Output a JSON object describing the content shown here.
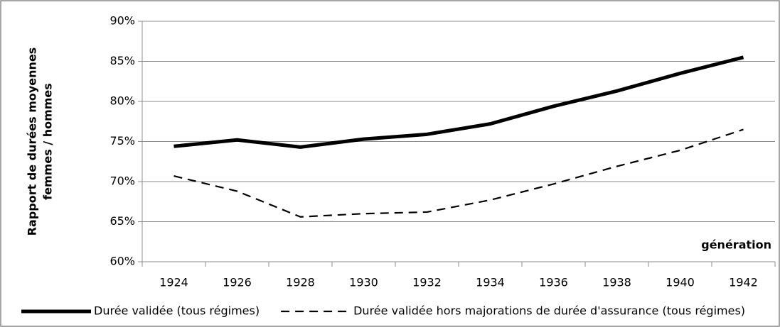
{
  "chart_data": {
    "type": "line",
    "y_label": [
      "Rapport de durées moyennes",
      "femmes / hommes"
    ],
    "x_label": "génération",
    "categories": [
      "1924",
      "1926",
      "1928",
      "1930",
      "1932",
      "1934",
      "1936",
      "1938",
      "1940",
      "1942"
    ],
    "series": [
      {
        "name": "Durée validée (tous régimes)",
        "color": "#000000",
        "line_style": "solid",
        "values": [
          74.4,
          75.2,
          74.3,
          75.3,
          75.9,
          77.2,
          79.4,
          81.3,
          83.5,
          85.5
        ]
      },
      {
        "name": "Durée validée hors majorations de durée d'assurance (tous régimes)",
        "color": "#000000",
        "line_style": "dashed",
        "values": [
          70.7,
          68.8,
          65.6,
          66.0,
          66.2,
          67.7,
          69.7,
          71.9,
          73.9,
          76.5
        ]
      }
    ],
    "ylim": [
      60,
      90
    ],
    "yticks": [
      {
        "value": 60,
        "label": "60%"
      },
      {
        "value": 65,
        "label": "65%"
      },
      {
        "value": 70,
        "label": "70%"
      },
      {
        "value": 75,
        "label": "75%"
      },
      {
        "value": 80,
        "label": "80%"
      },
      {
        "value": 85,
        "label": "85%"
      },
      {
        "value": 90,
        "label": "90%"
      }
    ],
    "grid": true,
    "legend": "bottom"
  }
}
